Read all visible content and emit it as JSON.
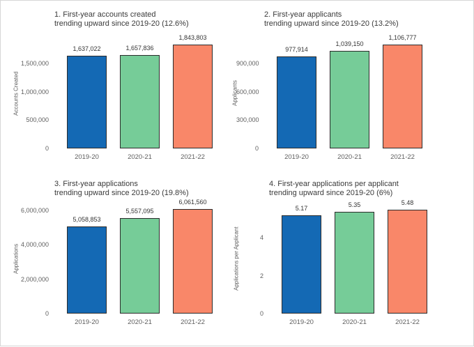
{
  "page": {
    "background": "#ffffff",
    "border_color": "#d6d6d6"
  },
  "palette": {
    "bar_colors": [
      "#1469b4",
      "#76cc98",
      "#f98769"
    ],
    "bar_outline": "#2b2b2b",
    "title_text": "#3a3a3a",
    "tick_text": "#5f5f5f"
  },
  "chart_data": [
    {
      "type": "bar",
      "title_line1": "1. First-year accounts created",
      "title_line2": "trending upward since 2019-20 (12.6%)",
      "ylabel": "Accounts Created",
      "xlabel": "",
      "categories": [
        "2019-20",
        "2020-21",
        "2021-22"
      ],
      "values": [
        1637022,
        1657836,
        1843803
      ],
      "value_labels": [
        "1,637,022",
        "1,657,836",
        "1,843,803"
      ],
      "yticks": [
        0,
        500000,
        1000000,
        1500000
      ],
      "ytick_labels": [
        "0",
        "500,000",
        "1,000,000",
        "1,500,000"
      ],
      "ylim": [
        0,
        1950000
      ],
      "grid": false,
      "legend": "none"
    },
    {
      "type": "bar",
      "title_line1": "2. First-year applicants",
      "title_line2": "trending upward since 2019-20 (13.2%)",
      "ylabel": "Applicants",
      "xlabel": "",
      "categories": [
        "2019-20",
        "2020-21",
        "2021-22"
      ],
      "values": [
        977914,
        1039150,
        1106777
      ],
      "value_labels": [
        "977,914",
        "1,039,150",
        "1,106,777"
      ],
      "yticks": [
        0,
        300000,
        600000,
        900000
      ],
      "ytick_labels": [
        "0",
        "300,000",
        "600,000",
        "900,000"
      ],
      "ylim": [
        0,
        1170000
      ],
      "grid": false,
      "legend": "none"
    },
    {
      "type": "bar",
      "title_line1": "3. First-year applications",
      "title_line2": "trending upward since 2019-20 (19.8%)",
      "ylabel": "Applications",
      "xlabel": "",
      "categories": [
        "2019-20",
        "2020-21",
        "2021-22"
      ],
      "values": [
        5058853,
        5557095,
        6061560
      ],
      "value_labels": [
        "5,058,853",
        "5,557,095",
        "6,061,560"
      ],
      "yticks": [
        0,
        2000000,
        4000000,
        6000000
      ],
      "ytick_labels": [
        "0",
        "2,000,000",
        "4,000,000",
        "6,000,000"
      ],
      "ylim": [
        0,
        6400000
      ],
      "grid": false,
      "legend": "none"
    },
    {
      "type": "bar",
      "title_line1": "4. First-year applications per applicant",
      "title_line2": "trending upward since 2019-20 (6%)",
      "ylabel": "Applications per Applicant",
      "xlabel": "",
      "categories": [
        "2019-20",
        "2020-21",
        "2021-22"
      ],
      "values": [
        5.17,
        5.35,
        5.48
      ],
      "value_labels": [
        "5.17",
        "5.35",
        "5.48"
      ],
      "yticks": [
        0,
        2,
        4
      ],
      "ytick_labels": [
        "0",
        "2",
        "4"
      ],
      "ylim": [
        0,
        5.8
      ],
      "grid": false,
      "legend": "none"
    }
  ]
}
